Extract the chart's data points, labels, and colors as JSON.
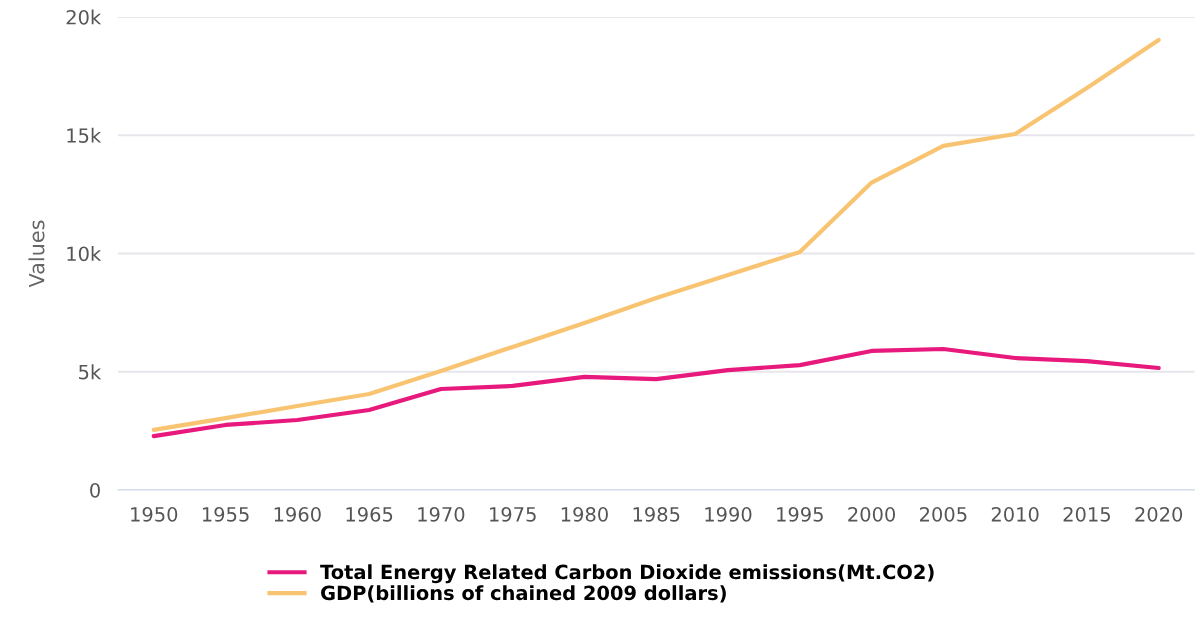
{
  "chart_data": {
    "type": "line",
    "ylabel": "Values",
    "categories": [
      "1950",
      "1955",
      "1960",
      "1965",
      "1970",
      "1975",
      "1980",
      "1985",
      "1990",
      "1995",
      "2000",
      "2005",
      "2010",
      "2015",
      "2020"
    ],
    "series": [
      {
        "name": "Total Energy Related Carbon Dioxide emissions(Mt.CO2)",
        "color": "#e8197c",
        "values": [
          2280,
          2750,
          2960,
          3380,
          4270,
          4400,
          4780,
          4690,
          5070,
          5280,
          5880,
          5960,
          5580,
          5450,
          5160
        ]
      },
      {
        "name": "GDP(billions of chained 2009 dollars)",
        "color": "#f8c471",
        "values": [
          2540,
          3040,
          3550,
          4060,
          5030,
          6050,
          7060,
          8120,
          9090,
          10060,
          13000,
          14550,
          15050,
          17000,
          19030
        ]
      }
    ],
    "ylim": [
      0,
      20000
    ],
    "yticks": [
      0,
      {
        "value": 5000,
        "label": "5k"
      },
      {
        "value": 10000,
        "label": "10k"
      },
      {
        "value": 15000,
        "label": "15k"
      },
      {
        "value": 20000,
        "label": "20k"
      }
    ],
    "grid": "y",
    "legend": "bottom",
    "marker": "none",
    "line_style": "solid"
  }
}
